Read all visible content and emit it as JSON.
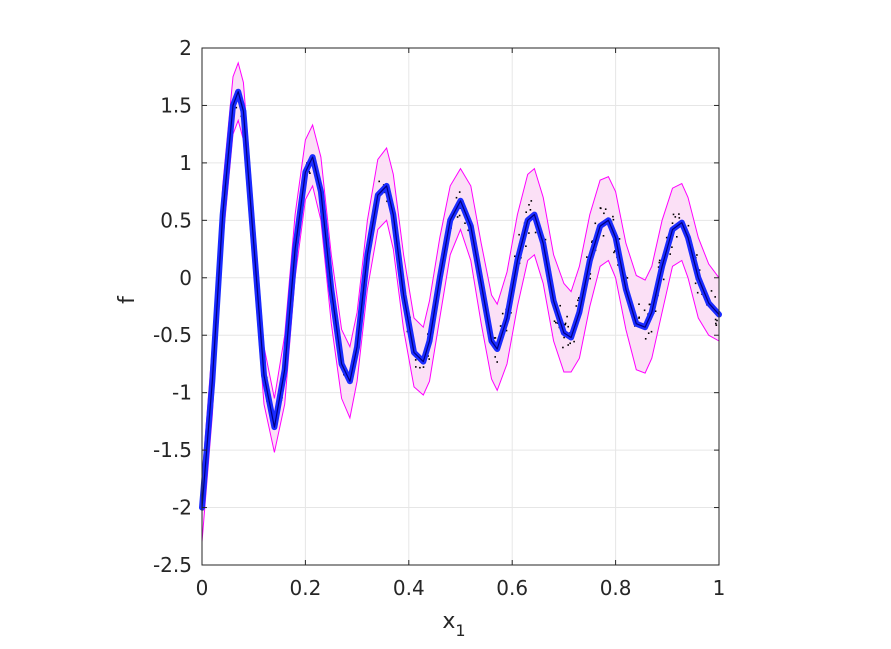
{
  "chart_data": {
    "type": "line",
    "title": "",
    "xlabel": "x",
    "xlabel_subscript": "1",
    "ylabel": "f",
    "xlim": [
      0,
      1
    ],
    "ylim": [
      -2.5,
      2
    ],
    "xticks": [
      0,
      0.2,
      0.4,
      0.6,
      0.8,
      1
    ],
    "yticks": [
      -2.5,
      -2,
      -1.5,
      -1,
      -0.5,
      0,
      0.5,
      1,
      1.5,
      2
    ],
    "xtick_labels": [
      "0",
      "0.2",
      "0.4",
      "0.6",
      "0.8",
      "1"
    ],
    "ytick_labels": [
      "-2.5",
      "-2",
      "-1.5",
      "-1",
      "-0.5",
      "0",
      "0.5",
      "1",
      "1.5",
      "2"
    ],
    "grid": true,
    "legend": "none",
    "colors": {
      "mean": "#1a2bff",
      "mean_core": "#000080",
      "band_fill": "#fbe0f6",
      "band_edge": "#ff00ff",
      "samples": "#000000",
      "grid": "#e6e6e6",
      "axis": "#262626"
    },
    "series": [
      {
        "kind": "mean",
        "x": [
          0,
          0.02,
          0.04,
          0.06,
          0.07,
          0.08,
          0.1,
          0.12,
          0.14,
          0.16,
          0.18,
          0.2,
          0.214,
          0.23,
          0.25,
          0.27,
          0.286,
          0.3,
          0.32,
          0.34,
          0.357,
          0.37,
          0.39,
          0.41,
          0.428,
          0.44,
          0.46,
          0.48,
          0.5,
          0.52,
          0.54,
          0.56,
          0.571,
          0.59,
          0.61,
          0.63,
          0.643,
          0.66,
          0.68,
          0.7,
          0.714,
          0.73,
          0.75,
          0.77,
          0.786,
          0.8,
          0.82,
          0.84,
          0.857,
          0.87,
          0.89,
          0.91,
          0.928,
          0.94,
          0.96,
          0.98,
          1.0
        ],
        "y": [
          -2.0,
          -0.9,
          0.55,
          1.5,
          1.62,
          1.45,
          0.3,
          -0.85,
          -1.3,
          -0.8,
          0.25,
          0.92,
          1.05,
          0.75,
          -0.1,
          -0.75,
          -0.9,
          -0.6,
          0.2,
          0.72,
          0.8,
          0.55,
          -0.15,
          -0.65,
          -0.73,
          -0.55,
          0.0,
          0.5,
          0.67,
          0.45,
          -0.05,
          -0.55,
          -0.62,
          -0.35,
          0.15,
          0.5,
          0.55,
          0.3,
          -0.2,
          -0.48,
          -0.52,
          -0.3,
          0.15,
          0.45,
          0.5,
          0.35,
          -0.1,
          -0.4,
          -0.43,
          -0.3,
          0.1,
          0.42,
          0.48,
          0.35,
          0.0,
          -0.22,
          -0.32
        ]
      },
      {
        "kind": "band_upper",
        "x": [
          0,
          0.02,
          0.04,
          0.06,
          0.07,
          0.08,
          0.1,
          0.12,
          0.14,
          0.16,
          0.18,
          0.2,
          0.214,
          0.23,
          0.25,
          0.27,
          0.286,
          0.3,
          0.32,
          0.34,
          0.357,
          0.37,
          0.39,
          0.41,
          0.428,
          0.44,
          0.46,
          0.48,
          0.5,
          0.52,
          0.54,
          0.56,
          0.571,
          0.59,
          0.61,
          0.63,
          0.643,
          0.66,
          0.68,
          0.7,
          0.714,
          0.73,
          0.75,
          0.77,
          0.786,
          0.8,
          0.82,
          0.84,
          0.857,
          0.87,
          0.89,
          0.91,
          0.928,
          0.94,
          0.96,
          0.98,
          1.0
        ],
        "y": [
          -1.75,
          -0.6,
          0.8,
          1.75,
          1.87,
          1.7,
          0.55,
          -0.6,
          -1.05,
          -0.5,
          0.55,
          1.2,
          1.33,
          1.05,
          0.2,
          -0.45,
          -0.6,
          -0.3,
          0.5,
          1.03,
          1.13,
          0.9,
          0.2,
          -0.35,
          -0.43,
          -0.2,
          0.35,
          0.8,
          0.95,
          0.8,
          0.3,
          -0.15,
          -0.23,
          0.05,
          0.55,
          0.9,
          0.95,
          0.7,
          0.2,
          -0.05,
          -0.12,
          0.1,
          0.55,
          0.85,
          0.88,
          0.75,
          0.3,
          0.02,
          -0.02,
          0.1,
          0.5,
          0.78,
          0.82,
          0.7,
          0.35,
          0.12,
          0.0
        ]
      },
      {
        "kind": "band_lower",
        "x": [
          0,
          0.02,
          0.04,
          0.06,
          0.07,
          0.08,
          0.1,
          0.12,
          0.14,
          0.16,
          0.18,
          0.2,
          0.214,
          0.23,
          0.25,
          0.27,
          0.286,
          0.3,
          0.32,
          0.34,
          0.357,
          0.37,
          0.39,
          0.41,
          0.428,
          0.44,
          0.46,
          0.48,
          0.5,
          0.52,
          0.54,
          0.56,
          0.571,
          0.59,
          0.61,
          0.63,
          0.643,
          0.66,
          0.68,
          0.7,
          0.714,
          0.73,
          0.75,
          0.77,
          0.786,
          0.8,
          0.82,
          0.84,
          0.857,
          0.87,
          0.89,
          0.91,
          0.928,
          0.94,
          0.96,
          0.98,
          1.0
        ],
        "y": [
          -2.3,
          -1.2,
          0.3,
          1.25,
          1.37,
          1.2,
          0.05,
          -1.1,
          -1.52,
          -1.1,
          0.0,
          0.68,
          0.8,
          0.5,
          -0.4,
          -1.05,
          -1.22,
          -0.9,
          -0.1,
          0.42,
          0.5,
          0.25,
          -0.45,
          -0.95,
          -1.02,
          -0.9,
          -0.35,
          0.2,
          0.42,
          0.15,
          -0.4,
          -0.88,
          -0.98,
          -0.75,
          -0.25,
          0.15,
          0.2,
          -0.05,
          -0.55,
          -0.82,
          -0.82,
          -0.7,
          -0.25,
          0.1,
          0.15,
          0.0,
          -0.45,
          -0.8,
          -0.83,
          -0.7,
          -0.3,
          0.1,
          0.15,
          0.0,
          -0.35,
          -0.5,
          -0.55
        ]
      }
    ]
  }
}
